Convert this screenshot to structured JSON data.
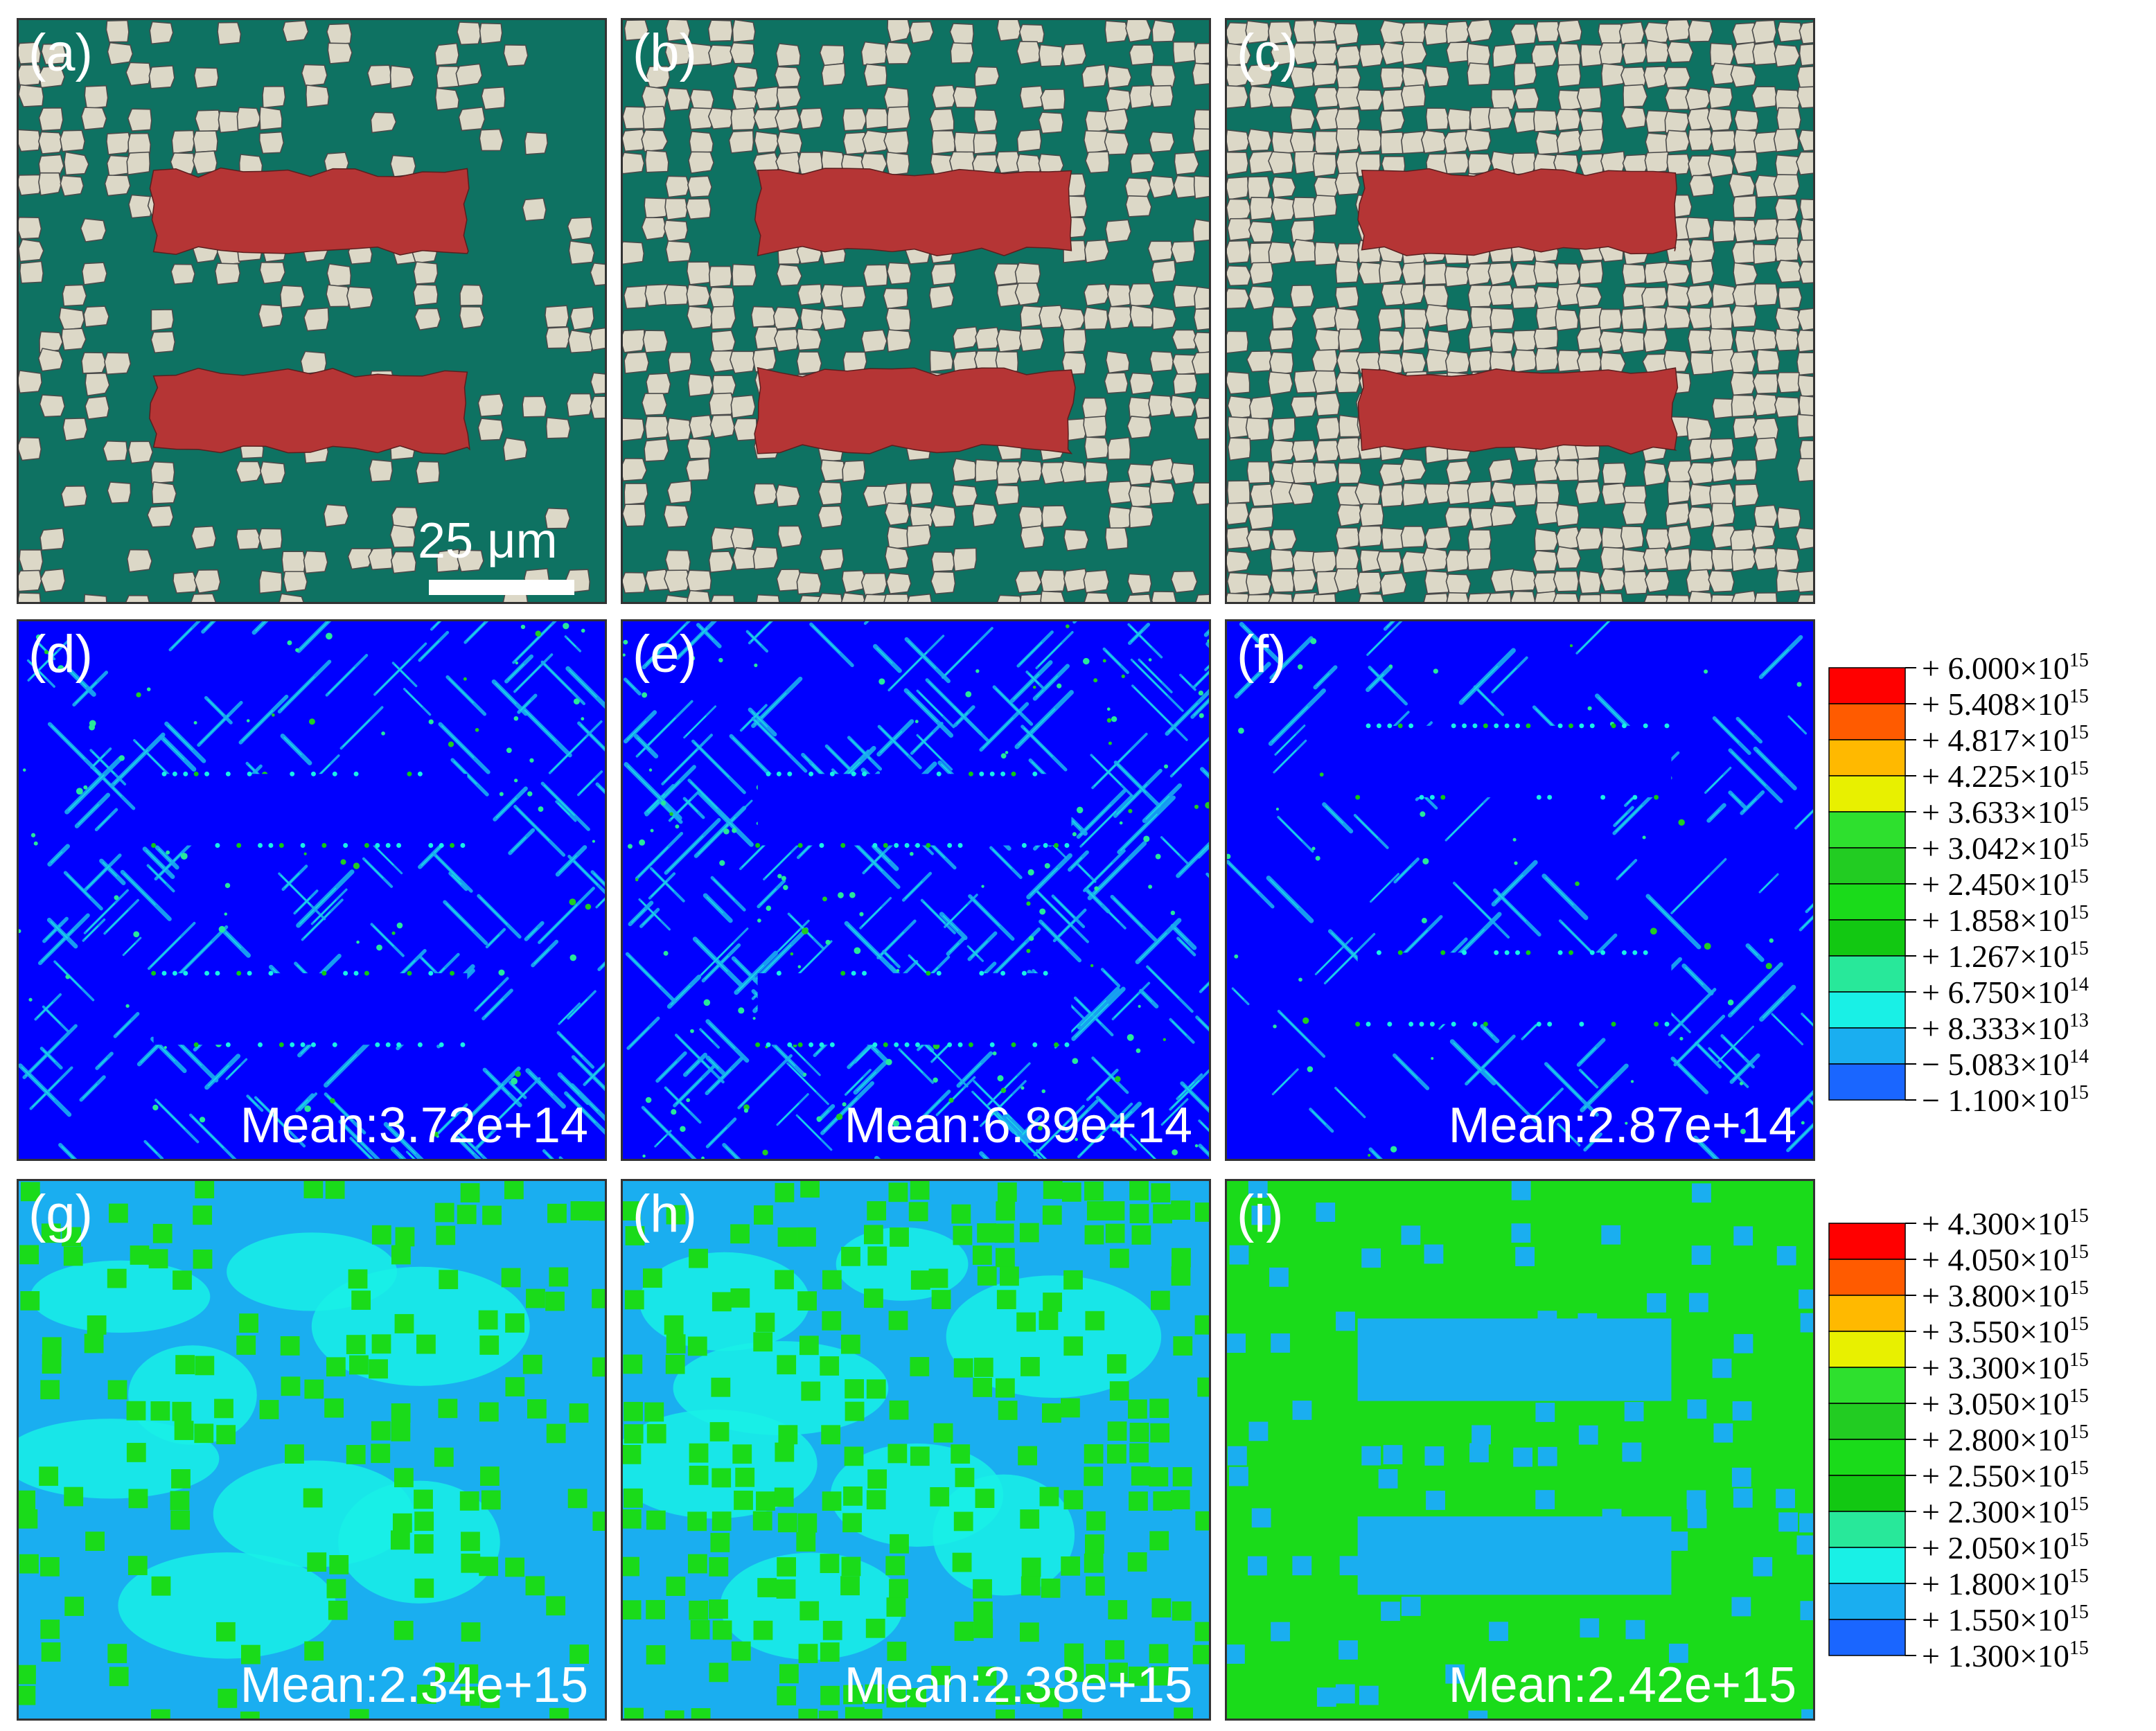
{
  "panels": [
    {
      "label": "(a)",
      "kind": "microstructure",
      "grain_fraction": 0.25
    },
    {
      "label": "(b)",
      "kind": "microstructure",
      "grain_fraction": 0.5
    },
    {
      "label": "(c)",
      "kind": "microstructure",
      "grain_fraction": 0.75
    },
    {
      "label": "(d)",
      "kind": "field-a",
      "mean": "Mean:3.72e+14"
    },
    {
      "label": "(e)",
      "kind": "field-a",
      "mean": "Mean:6.89e+14"
    },
    {
      "label": "(f)",
      "kind": "field-a",
      "mean": "Mean:2.87e+14"
    },
    {
      "label": "(g)",
      "kind": "field-b",
      "mean": "Mean:2.34e+15"
    },
    {
      "label": "(h)",
      "kind": "field-b",
      "mean": "Mean:2.38e+15"
    },
    {
      "label": "(i)",
      "kind": "field-b",
      "mean": "Mean:2.42e+15"
    }
  ],
  "scale_bar": {
    "label": "25 μm"
  },
  "legend_top": {
    "entries": [
      {
        "sign": "+",
        "mantissa": "6.000",
        "exponent": "15"
      },
      {
        "sign": "+",
        "mantissa": "5.408",
        "exponent": "15"
      },
      {
        "sign": "+",
        "mantissa": "4.817",
        "exponent": "15"
      },
      {
        "sign": "+",
        "mantissa": "4.225",
        "exponent": "15"
      },
      {
        "sign": "+",
        "mantissa": "3.633",
        "exponent": "15"
      },
      {
        "sign": "+",
        "mantissa": "3.042",
        "exponent": "15"
      },
      {
        "sign": "+",
        "mantissa": "2.450",
        "exponent": "15"
      },
      {
        "sign": "+",
        "mantissa": "1.858",
        "exponent": "15"
      },
      {
        "sign": "+",
        "mantissa": "1.267",
        "exponent": "15"
      },
      {
        "sign": "+",
        "mantissa": "6.750",
        "exponent": "14"
      },
      {
        "sign": "+",
        "mantissa": "8.333",
        "exponent": "13"
      },
      {
        "sign": "−",
        "mantissa": "5.083",
        "exponent": "14"
      },
      {
        "sign": "−",
        "mantissa": "1.100",
        "exponent": "15"
      }
    ]
  },
  "legend_bottom": {
    "entries": [
      {
        "sign": "+",
        "mantissa": "4.300",
        "exponent": "15"
      },
      {
        "sign": "+",
        "mantissa": "4.050",
        "exponent": "15"
      },
      {
        "sign": "+",
        "mantissa": "3.800",
        "exponent": "15"
      },
      {
        "sign": "+",
        "mantissa": "3.550",
        "exponent": "15"
      },
      {
        "sign": "+",
        "mantissa": "3.300",
        "exponent": "15"
      },
      {
        "sign": "+",
        "mantissa": "3.050",
        "exponent": "15"
      },
      {
        "sign": "+",
        "mantissa": "2.800",
        "exponent": "15"
      },
      {
        "sign": "+",
        "mantissa": "2.550",
        "exponent": "15"
      },
      {
        "sign": "+",
        "mantissa": "2.300",
        "exponent": "15"
      },
      {
        "sign": "+",
        "mantissa": "2.050",
        "exponent": "15"
      },
      {
        "sign": "+",
        "mantissa": "1.800",
        "exponent": "15"
      },
      {
        "sign": "+",
        "mantissa": "1.550",
        "exponent": "15"
      },
      {
        "sign": "+",
        "mantissa": "1.300",
        "exponent": "15"
      }
    ]
  },
  "colors": {
    "matrix": "#0e7262",
    "grain": "#dcd8c7",
    "inclusion": "#b53535",
    "contour": [
      "#ff0000",
      "#ff5b00",
      "#ffb900",
      "#e8f000",
      "#2ee02e",
      "#22cc22",
      "#1adb1a",
      "#12c812",
      "#28e89a",
      "#19f0e6",
      "#1aaef0",
      "#1a66ff",
      "#0000ff"
    ]
  }
}
